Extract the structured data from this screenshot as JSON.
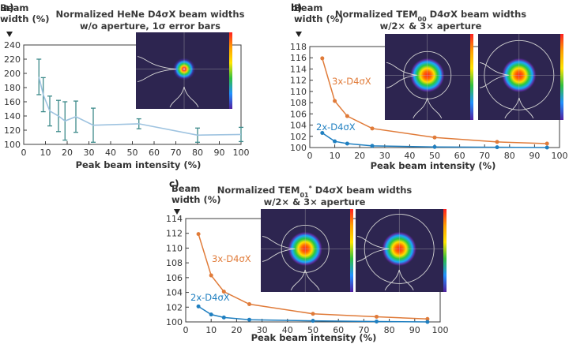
{
  "chart_data": [
    {
      "panel_label": "a)",
      "type": "line",
      "title": "Normalized HeNe D4σX beam widths",
      "subtitle": "w/o aperture, 1σ error bars",
      "ylabel_line1": "Beam",
      "ylabel_line2": "width (%)",
      "xlabel": "Peak beam intensity (%)",
      "xlim": [
        0,
        100
      ],
      "ylim": [
        100,
        240
      ],
      "xticks": [
        "0",
        "10",
        "20",
        "30",
        "40",
        "50",
        "60",
        "70",
        "80",
        "90",
        "100"
      ],
      "yticks": [
        "100",
        "120",
        "140",
        "160",
        "180",
        "200",
        "220",
        "240"
      ],
      "series": [
        {
          "name": "HeNe D4σX",
          "color": "#9ec3e0",
          "error_color": "#3d8a8a",
          "x": [
            7,
            9,
            12,
            16,
            19,
            24,
            32,
            53,
            80,
            100
          ],
          "values": [
            195,
            170,
            147,
            140,
            133,
            139,
            127,
            129,
            113,
            114
          ],
          "error": [
            25,
            24,
            21,
            22,
            27,
            22,
            24,
            7,
            10,
            10
          ]
        }
      ],
      "inset_count": 1
    },
    {
      "panel_label": "b)",
      "type": "line",
      "title": "Normalized TEM00 D4σX beam widths",
      "subtitle": "w/2× & 3× aperture",
      "ylabel_line1": "Beam",
      "ylabel_line2": "width (%)",
      "xlabel": "Peak beam intensity (%)",
      "xlim": [
        0,
        100
      ],
      "ylim": [
        100,
        118
      ],
      "xticks": [
        "0",
        "10",
        "20",
        "30",
        "40",
        "50",
        "60",
        "70",
        "80",
        "90",
        "100"
      ],
      "yticks": [
        "100",
        "102",
        "104",
        "106",
        "108",
        "110",
        "112",
        "114",
        "116",
        "118"
      ],
      "series": [
        {
          "name": "3x-D4σX",
          "color": "#e07b39",
          "x": [
            5,
            10,
            15,
            25,
            50,
            75,
            95
          ],
          "values": [
            115.9,
            108.3,
            105.6,
            103.4,
            101.8,
            101.0,
            100.7
          ]
        },
        {
          "name": "2x-D4σX",
          "color": "#1f7fc0",
          "x": [
            5,
            10,
            15,
            25,
            50,
            75,
            95
          ],
          "values": [
            102.6,
            101.1,
            100.7,
            100.3,
            100.1,
            100.05,
            100.0
          ]
        }
      ],
      "inset_count": 2
    },
    {
      "panel_label": "c)",
      "type": "line",
      "title": "Normalized TEM01* D4σX beam widths",
      "subtitle": "w/2× & 3× aperture",
      "ylabel_line1": "Beam",
      "ylabel_line2": "width (%)",
      "xlabel": "Peak beam intensity (%)",
      "xlim": [
        0,
        100
      ],
      "ylim": [
        100,
        114
      ],
      "xticks": [
        "0",
        "10",
        "20",
        "30",
        "40",
        "50",
        "60",
        "70",
        "80",
        "90",
        "100"
      ],
      "yticks": [
        "100",
        "102",
        "104",
        "106",
        "108",
        "110",
        "112",
        "114"
      ],
      "series": [
        {
          "name": "3x-D4σX",
          "color": "#e07b39",
          "x": [
            5,
            10,
            15,
            25,
            50,
            75,
            95
          ],
          "values": [
            111.9,
            106.3,
            104.1,
            102.4,
            101.1,
            100.7,
            100.4
          ]
        },
        {
          "name": "2x-D4σX",
          "color": "#1f7fc0",
          "x": [
            5,
            10,
            15,
            25,
            50,
            75,
            95
          ],
          "values": [
            102.1,
            101.0,
            100.6,
            100.3,
            100.15,
            100.05,
            100.0
          ]
        }
      ],
      "inset_count": 2
    }
  ]
}
